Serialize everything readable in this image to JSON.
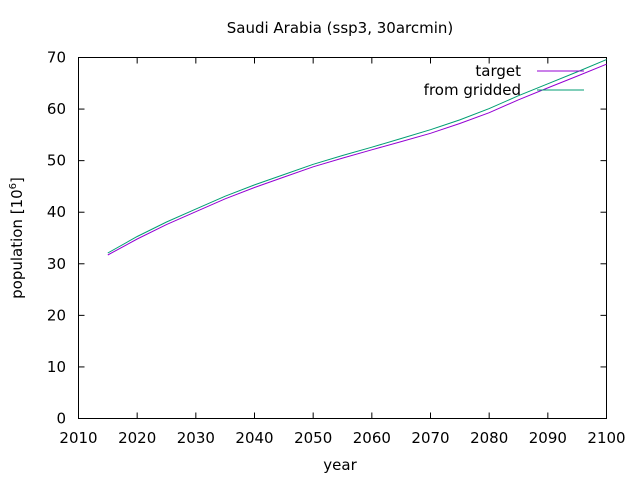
{
  "chart_data": {
    "type": "line",
    "title": "Saudi Arabia (ssp3, 30arcmin)",
    "xlabel": "year",
    "ylabel_main": "population [10",
    "ylabel_sup": "6",
    "ylabel_close": "]",
    "xlim": [
      2010,
      2100
    ],
    "ylim": [
      0,
      70
    ],
    "xticks": [
      2010,
      2020,
      2030,
      2040,
      2050,
      2060,
      2070,
      2080,
      2090,
      2100
    ],
    "yticks": [
      0,
      10,
      20,
      30,
      40,
      50,
      60,
      70
    ],
    "grid": false,
    "legend_position": "top-right",
    "x": [
      2015,
      2020,
      2025,
      2030,
      2035,
      2040,
      2045,
      2050,
      2055,
      2060,
      2065,
      2070,
      2075,
      2080,
      2085,
      2090,
      2095,
      2100
    ],
    "series": [
      {
        "name": "target",
        "color": "#9400d3",
        "values": [
          31.7,
          34.8,
          37.6,
          40.1,
          42.6,
          44.8,
          46.8,
          48.8,
          50.5,
          52.1,
          53.7,
          55.3,
          57.2,
          59.3,
          61.8,
          64.1,
          66.4,
          68.7
        ]
      },
      {
        "name": "from gridded",
        "color": "#009e73",
        "values": [
          32.1,
          35.3,
          38.1,
          40.6,
          43.1,
          45.3,
          47.3,
          49.3,
          51.0,
          52.6,
          54.3,
          56.0,
          57.9,
          60.1,
          62.6,
          64.9,
          67.2,
          69.6
        ]
      }
    ]
  }
}
